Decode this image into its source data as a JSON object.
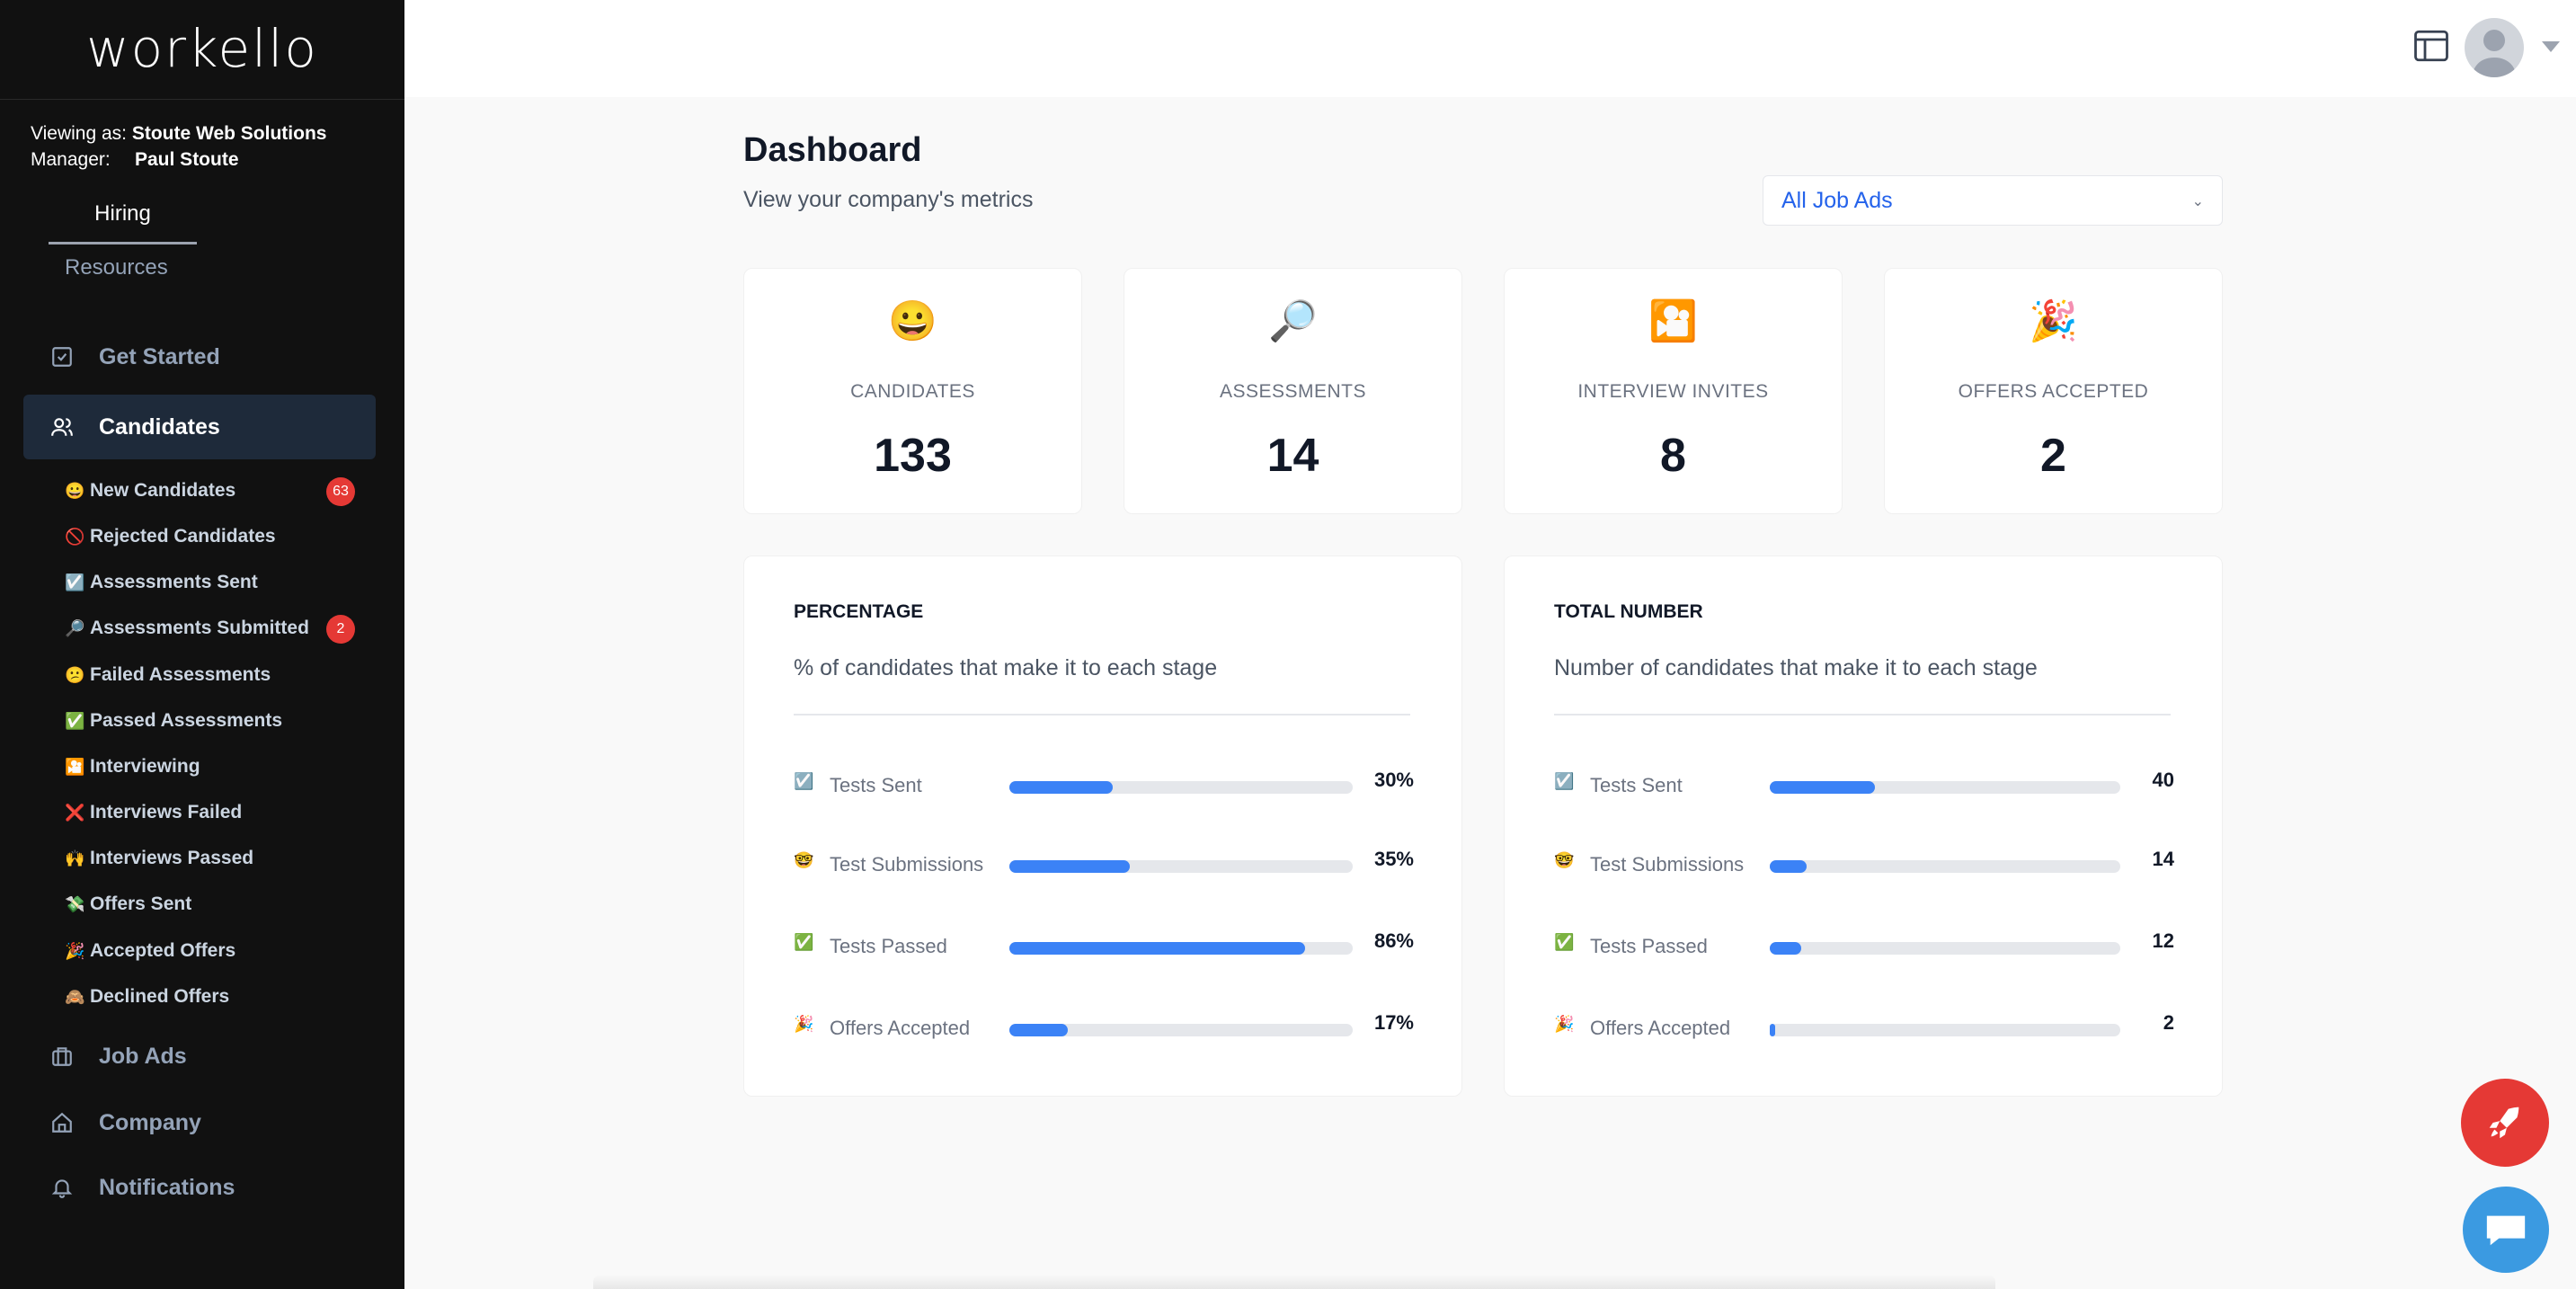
{
  "app": {
    "logo": "workello"
  },
  "account": {
    "viewing_label": "Viewing as:",
    "viewing_value": "Stoute Web Solutions",
    "manager_label": "Manager:",
    "manager_value": "Paul Stoute"
  },
  "tabs": [
    {
      "label": "Hiring",
      "active": true
    },
    {
      "label": "Resources",
      "active": false
    }
  ],
  "nav": {
    "get_started": {
      "label": "Get Started",
      "icon": "checkbox-icon"
    },
    "candidates": {
      "label": "Candidates",
      "icon": "users-icon",
      "active": true
    },
    "job_ads": {
      "label": "Job Ads",
      "icon": "briefcase-icon"
    },
    "company": {
      "label": "Company",
      "icon": "home-icon"
    },
    "notifications": {
      "label": "Notifications",
      "icon": "bell-icon"
    }
  },
  "subnav": [
    {
      "emoji": "😀",
      "label": "New Candidates",
      "badge": "63"
    },
    {
      "emoji": "🚫",
      "label": "Rejected Candidates"
    },
    {
      "emoji": "☑️",
      "label": "Assessments Sent"
    },
    {
      "emoji": "🔎",
      "label": "Assessments Submitted",
      "badge": "2"
    },
    {
      "emoji": "😕",
      "label": "Failed Assessments"
    },
    {
      "emoji": "✅",
      "label": "Passed Assessments"
    },
    {
      "emoji": "🎦",
      "label": "Interviewing"
    },
    {
      "emoji": "❌",
      "label": "Interviews Failed"
    },
    {
      "emoji": "🙌",
      "label": "Interviews Passed"
    },
    {
      "emoji": "💸",
      "label": "Offers Sent"
    },
    {
      "emoji": "🎉",
      "label": "Accepted Offers"
    },
    {
      "emoji": "🙈",
      "label": "Declined Offers"
    }
  ],
  "header": {
    "title": "Dashboard",
    "subtitle": "View your company's metrics",
    "filter": {
      "selected": "All Job Ads"
    }
  },
  "stats": [
    {
      "emoji": "😀",
      "label": "CANDIDATES",
      "value": "133"
    },
    {
      "emoji": "🔎",
      "label": "ASSESSMENTS",
      "value": "14"
    },
    {
      "emoji": "🎦",
      "label": "INTERVIEW INVITES",
      "value": "8"
    },
    {
      "emoji": "🎉",
      "label": "OFFERS ACCEPTED",
      "value": "2"
    }
  ],
  "percentage_panel": {
    "title": "PERCENTAGE",
    "subtitle": "% of candidates that make it to each stage",
    "rows": [
      {
        "emoji": "☑️",
        "label": "Tests Sent",
        "value": "30%",
        "fraction": 0.3
      },
      {
        "emoji": "🤓",
        "label": "Test Submissions",
        "value": "35%",
        "fraction": 0.35
      },
      {
        "emoji": "✅",
        "label": "Tests Passed",
        "value": "86%",
        "fraction": 0.86
      },
      {
        "emoji": "🎉",
        "label": "Offers Accepted",
        "value": "17%",
        "fraction": 0.17
      }
    ]
  },
  "total_panel": {
    "title": "TOTAL NUMBER",
    "subtitle": "Number of candidates that make it to each stage",
    "rows": [
      {
        "emoji": "☑️",
        "label": "Tests Sent",
        "value": "40",
        "fraction": 0.3
      },
      {
        "emoji": "🤓",
        "label": "Test Submissions",
        "value": "14",
        "fraction": 0.105
      },
      {
        "emoji": "✅",
        "label": "Tests Passed",
        "value": "12",
        "fraction": 0.09
      },
      {
        "emoji": "🎉",
        "label": "Offers Accepted",
        "value": "2",
        "fraction": 0.015
      }
    ]
  },
  "colors": {
    "sidebar_bg": "#111111",
    "active_nav_bg": "#1e2a3a",
    "accent": "#3b82f6",
    "badge": "#e53935",
    "rocket_fab": "#e53935",
    "chat_fab": "#3b9ae1"
  }
}
